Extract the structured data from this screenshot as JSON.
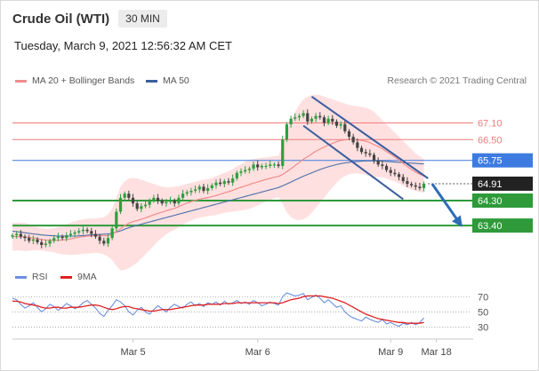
{
  "header": {
    "title": "Crude Oil (WTI)",
    "timeframe": "30 MIN",
    "timestamp": "Tuesday, March 9, 2021 12:56:32 AM CET",
    "credit": "Research © 2021 Trading Central"
  },
  "colors": {
    "bb_fill": "#ffd5d5",
    "ma20": "#f08c8c",
    "ma50": "#4a6fa8",
    "resistance": "#f07c7c",
    "pivot": "#3d7be0",
    "support": "#2e9a3a",
    "last": "#222222",
    "candle_up": "#2f9e3f",
    "candle_down": "#444444",
    "channel": "#3b5d9e",
    "rsi": "#6b8fe0",
    "rsi_ma": "#e02020",
    "arrow": "#2d6db6"
  },
  "legend": {
    "ma20": "MA 20 + Bollinger Bands",
    "ma50": "MA 50",
    "rsi": "RSI",
    "rsi_ma": "9MA"
  },
  "chart_data": [
    {
      "type": "candlestick",
      "ylim": [
        61.9,
        68.3
      ],
      "x_range": [
        0,
        110
      ],
      "xticks": [
        {
          "label": "Mar 5",
          "x": 29
        },
        {
          "label": "Mar 6",
          "x": 59
        },
        {
          "label": "Mar 9",
          "x": 91
        },
        {
          "label": "Mar 18",
          "x": 102
        }
      ],
      "levels": [
        {
          "label": "67.10",
          "value": 67.1,
          "kind": "resistance"
        },
        {
          "label": "66.50",
          "value": 66.5,
          "kind": "resistance"
        },
        {
          "label": "65.75",
          "value": 65.75,
          "kind": "pivot"
        },
        {
          "label": "64.91",
          "value": 64.91,
          "kind": "last"
        },
        {
          "label": "64.30",
          "value": 64.3,
          "kind": "support"
        },
        {
          "label": "63.40",
          "value": 63.4,
          "kind": "support"
        }
      ],
      "closes": [
        63.05,
        63.1,
        63.0,
        62.95,
        62.85,
        62.9,
        62.8,
        62.7,
        62.75,
        62.85,
        62.95,
        63.0,
        62.95,
        63.05,
        63.1,
        63.15,
        63.2,
        63.25,
        63.2,
        63.1,
        63.0,
        62.85,
        62.75,
        62.95,
        63.3,
        63.9,
        64.4,
        64.55,
        64.4,
        64.2,
        64.0,
        64.1,
        64.15,
        64.3,
        64.4,
        64.3,
        64.2,
        64.25,
        64.3,
        64.2,
        64.4,
        64.55,
        64.6,
        64.65,
        64.7,
        64.8,
        64.65,
        64.75,
        64.85,
        64.95,
        64.9,
        65.0,
        64.95,
        65.1,
        65.3,
        65.35,
        65.4,
        65.45,
        65.6,
        65.5,
        65.55,
        65.55,
        65.6,
        65.6,
        65.55,
        66.5,
        67.05,
        67.25,
        67.3,
        67.35,
        67.45,
        67.15,
        67.25,
        67.35,
        67.3,
        67.1,
        67.25,
        67.15,
        67.0,
        67.05,
        66.8,
        66.6,
        66.4,
        66.2,
        66.05,
        66.0,
        65.95,
        65.75,
        65.6,
        65.55,
        65.4,
        65.3,
        65.25,
        65.15,
        65.0,
        64.9,
        64.85,
        64.8,
        64.75,
        64.91
      ],
      "ma20": [
        63.0,
        63.0,
        63.0,
        62.99,
        62.97,
        62.95,
        62.93,
        62.9,
        62.88,
        62.87,
        62.87,
        62.87,
        62.88,
        62.9,
        62.92,
        62.95,
        62.98,
        63.0,
        63.02,
        63.03,
        63.04,
        63.04,
        63.03,
        63.04,
        63.08,
        63.17,
        63.29,
        63.4,
        63.48,
        63.54,
        63.58,
        63.63,
        63.68,
        63.73,
        63.79,
        63.84,
        63.88,
        63.93,
        63.98,
        64.02,
        64.08,
        64.15,
        64.21,
        64.26,
        64.31,
        64.35,
        64.38,
        64.41,
        64.44,
        64.48,
        64.53,
        64.58,
        64.62,
        64.67,
        64.73,
        64.78,
        64.83,
        64.88,
        64.93,
        64.97,
        65.02,
        65.06,
        65.1,
        65.14,
        65.17,
        65.24,
        65.34,
        65.45,
        65.56,
        65.67,
        65.79,
        65.88,
        65.98,
        66.08,
        66.16,
        66.23,
        66.3,
        66.36,
        66.42,
        66.47,
        66.49,
        66.5,
        66.5,
        66.49,
        66.47,
        66.44,
        66.39,
        66.32,
        66.25,
        66.17,
        66.07,
        65.97,
        65.87,
        65.76,
        65.64,
        65.53,
        65.42,
        65.33,
        65.25,
        65.19
      ],
      "ma50": [
        63.2,
        63.18,
        63.16,
        63.14,
        63.12,
        63.1,
        63.08,
        63.06,
        63.05,
        63.04,
        63.03,
        63.02,
        63.02,
        63.02,
        63.02,
        63.02,
        63.03,
        63.04,
        63.05,
        63.06,
        63.07,
        63.08,
        63.09,
        63.1,
        63.12,
        63.16,
        63.21,
        63.27,
        63.32,
        63.37,
        63.41,
        63.45,
        63.49,
        63.53,
        63.57,
        63.61,
        63.65,
        63.69,
        63.73,
        63.77,
        63.81,
        63.85,
        63.89,
        63.93,
        63.97,
        64.01,
        64.05,
        64.09,
        64.13,
        64.17,
        64.21,
        64.25,
        64.29,
        64.33,
        64.37,
        64.41,
        64.45,
        64.49,
        64.53,
        64.57,
        64.61,
        64.65,
        64.69,
        64.73,
        64.77,
        64.83,
        64.9,
        64.97,
        65.04,
        65.11,
        65.18,
        65.24,
        65.3,
        65.36,
        65.42,
        65.47,
        65.52,
        65.56,
        65.6,
        65.63,
        65.66,
        65.68,
        65.7,
        65.71,
        65.72,
        65.73,
        65.73,
        65.73,
        65.73,
        65.72,
        65.71,
        65.7,
        65.69,
        65.68,
        65.67,
        65.66,
        65.65,
        65.64,
        65.63,
        65.62
      ],
      "bb_upper": [
        63.5,
        63.5,
        63.5,
        63.5,
        63.45,
        63.4,
        63.35,
        63.3,
        63.28,
        63.28,
        63.3,
        63.35,
        63.4,
        63.45,
        63.5,
        63.55,
        63.6,
        63.62,
        63.65,
        63.65,
        63.66,
        63.68,
        63.7,
        63.8,
        64.0,
        64.4,
        64.8,
        65.0,
        65.1,
        65.12,
        65.1,
        65.05,
        65.0,
        64.95,
        64.9,
        64.85,
        64.8,
        64.78,
        64.78,
        64.8,
        64.82,
        64.86,
        64.9,
        64.94,
        64.98,
        65.02,
        65.05,
        65.08,
        65.12,
        65.18,
        65.24,
        65.3,
        65.36,
        65.44,
        65.54,
        65.62,
        65.7,
        65.76,
        65.8,
        65.82,
        65.84,
        65.86,
        65.88,
        65.9,
        65.92,
        66.3,
        66.8,
        67.2,
        67.5,
        67.75,
        67.95,
        68.05,
        68.1,
        68.12,
        68.1,
        68.05,
        68.0,
        67.95,
        67.9,
        67.85,
        67.8,
        67.75,
        67.72,
        67.7,
        67.68,
        67.65,
        67.6,
        67.5,
        67.35,
        67.2,
        67.05,
        66.9,
        66.75,
        66.6,
        66.45,
        66.3,
        66.15,
        66.0,
        65.9,
        65.8
      ],
      "bb_lower": [
        62.5,
        62.5,
        62.5,
        62.48,
        62.49,
        62.5,
        62.51,
        62.5,
        62.48,
        62.46,
        62.44,
        62.39,
        62.36,
        62.35,
        62.34,
        62.35,
        62.36,
        62.38,
        62.39,
        62.41,
        62.42,
        62.4,
        62.36,
        62.28,
        62.16,
        61.94,
        61.78,
        61.8,
        61.86,
        61.96,
        62.06,
        62.21,
        62.36,
        62.51,
        62.68,
        62.83,
        62.96,
        63.08,
        63.18,
        63.24,
        63.34,
        63.44,
        63.52,
        63.58,
        63.64,
        63.68,
        63.71,
        63.74,
        63.76,
        63.78,
        63.82,
        63.86,
        63.88,
        63.9,
        63.92,
        63.94,
        63.96,
        64.0,
        64.06,
        64.12,
        64.2,
        64.26,
        64.32,
        64.38,
        64.42,
        64.18,
        63.88,
        63.7,
        63.62,
        63.59,
        63.63,
        63.71,
        63.86,
        64.04,
        64.22,
        64.41,
        64.6,
        64.77,
        64.94,
        65.09,
        65.18,
        65.25,
        65.28,
        65.28,
        65.26,
        65.23,
        65.18,
        65.14,
        65.15,
        65.14,
        65.09,
        65.04,
        64.99,
        64.92,
        64.83,
        64.76,
        64.69,
        64.66,
        64.6,
        64.58
      ],
      "channel": [
        {
          "x": 72,
          "y": 68.05,
          "x2": 100,
          "y2": 65.1
        },
        {
          "x": 70,
          "y": 67.0,
          "x2": 94,
          "y2": 64.35
        }
      ],
      "forecast_arrow": {
        "x": 101,
        "y": 64.9,
        "x2": 108,
        "y2": 63.4
      }
    },
    {
      "type": "line",
      "ylim": [
        20,
        82
      ],
      "yticks": [
        30,
        50,
        70
      ],
      "rsi": [
        68,
        66,
        60,
        55,
        58,
        62,
        56,
        50,
        54,
        60,
        57,
        52,
        56,
        61,
        58,
        54,
        57,
        62,
        65,
        60,
        55,
        48,
        44,
        52,
        58,
        66,
        63,
        58,
        50,
        46,
        52,
        56,
        50,
        47,
        53,
        58,
        54,
        50,
        56,
        60,
        57,
        55,
        60,
        63,
        58,
        61,
        57,
        62,
        60,
        63,
        59,
        64,
        60,
        62,
        65,
        61,
        63,
        60,
        65,
        62,
        58,
        60,
        63,
        61,
        59,
        70,
        75,
        73,
        71,
        72,
        74,
        66,
        69,
        72,
        68,
        62,
        66,
        61,
        56,
        58,
        50,
        45,
        42,
        40,
        38,
        43,
        40,
        38,
        36,
        40,
        34,
        36,
        33,
        31,
        35,
        33,
        36,
        33,
        36,
        42
      ],
      "rsi_ma": [
        64,
        64,
        63,
        61,
        60,
        59,
        58,
        56,
        55,
        55,
        56,
        56,
        55,
        55,
        56,
        56,
        56,
        57,
        58,
        59,
        59,
        58,
        56,
        54,
        53,
        54,
        56,
        57,
        57,
        55,
        54,
        53,
        52,
        51,
        51,
        52,
        53,
        53,
        53,
        54,
        55,
        56,
        57,
        58,
        59,
        59,
        59,
        60,
        60,
        60,
        60,
        61,
        61,
        61,
        62,
        62,
        62,
        62,
        62,
        62,
        62,
        62,
        62,
        62,
        61,
        62,
        64,
        66,
        67,
        68,
        70,
        71,
        71,
        71,
        71,
        70,
        69,
        68,
        66,
        64,
        62,
        59,
        56,
        53,
        50,
        47,
        45,
        43,
        41,
        40,
        39,
        38,
        37,
        36,
        36,
        35,
        35,
        35,
        35,
        36
      ]
    }
  ]
}
